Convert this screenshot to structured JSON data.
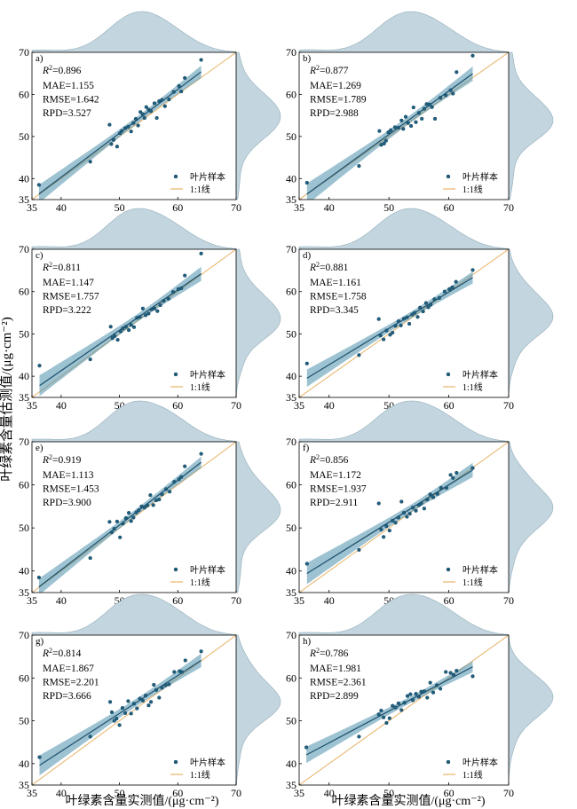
{
  "figure": {
    "ylabel": "叶绿素含量估测值/(μg·cm⁻²)",
    "xlabel": "叶绿素含量实测值/(μg·cm⁻²)",
    "legend_items": [
      "叶片样本",
      "1:1线"
    ],
    "colors": {
      "point": "#1f6080",
      "regression": "#1d4f6b",
      "band": "#4d8fab",
      "identity": "#e8b368",
      "density": "#c3d5de",
      "density_edge": "#92aebb"
    }
  },
  "chart_data": [
    {
      "panel": "a)",
      "type": "scatter",
      "xlim": [
        35,
        70
      ],
      "ylim": [
        35,
        70
      ],
      "xticks": [
        35,
        40,
        50,
        60,
        70
      ],
      "yticks": [
        35,
        40,
        50,
        60,
        70
      ],
      "legend_position": "bottom-right",
      "stats": {
        "r2": "0.896",
        "mae": "MAE=1.155",
        "rmse": "RMSE=1.642",
        "rpd": "RPD=3.527"
      },
      "x": [
        36.2,
        45.0,
        48.3,
        48.6,
        49.0,
        49.6,
        50.1,
        50.4,
        51.0,
        51.5,
        52.0,
        52.4,
        52.8,
        53.2,
        53.6,
        54.0,
        54.3,
        54.6,
        55.0,
        55.4,
        56.0,
        56.4,
        56.8,
        57.3,
        57.8,
        58.5,
        59.3,
        60.2,
        60.6,
        61.2,
        64.0
      ],
      "y": [
        38.5,
        44.0,
        52.8,
        48.2,
        49.2,
        47.6,
        50.8,
        51.3,
        52.0,
        52.3,
        51.2,
        53.2,
        54.2,
        52.6,
        55.8,
        55.3,
        54.4,
        57.0,
        56.4,
        56.0,
        57.9,
        54.4,
        58.4,
        58.7,
        57.2,
        58.8,
        60.6,
        62.0,
        60.7,
        63.9,
        68.2
      ]
    },
    {
      "panel": "b)",
      "type": "scatter",
      "xlim": [
        35,
        70
      ],
      "ylim": [
        35,
        70
      ],
      "xticks": [
        35,
        40,
        50,
        60,
        70
      ],
      "yticks": [
        35,
        40,
        50,
        60,
        70
      ],
      "legend_position": "bottom-right",
      "stats": {
        "r2": "0.877",
        "mae": "MAE=1.269",
        "rmse": "RMSE=1.789",
        "rpd": "RPD=2.988"
      },
      "x": [
        36.3,
        45.0,
        48.4,
        48.7,
        49.2,
        49.5,
        49.9,
        50.3,
        51.0,
        51.6,
        52.1,
        52.4,
        52.8,
        53.2,
        53.7,
        54.1,
        54.5,
        55.0,
        55.5,
        55.9,
        56.3,
        56.8,
        57.2,
        57.7,
        58.6,
        59.5,
        60.3,
        60.7,
        61.3,
        64.0
      ],
      "y": [
        39.0,
        43.0,
        51.3,
        48.0,
        48.3,
        49.0,
        51.0,
        51.5,
        52.2,
        52.1,
        53.8,
        51.8,
        54.7,
        53.2,
        52.5,
        56.9,
        53.4,
        55.6,
        54.2,
        56.6,
        57.7,
        57.6,
        57.0,
        54.2,
        59.2,
        59.8,
        61.0,
        60.2,
        65.3,
        69.2
      ]
    },
    {
      "panel": "c)",
      "type": "scatter",
      "xlim": [
        35,
        70
      ],
      "ylim": [
        35,
        70
      ],
      "xticks": [
        35,
        40,
        50,
        60,
        70
      ],
      "yticks": [
        35,
        40,
        50,
        60,
        70
      ],
      "legend_position": "bottom-right",
      "stats": {
        "r2": "0.811",
        "mae": "MAE=1.147",
        "rmse": "RMSE=1.757",
        "rpd": "RPD=3.222"
      },
      "x": [
        36.3,
        45.0,
        48.5,
        48.8,
        49.2,
        49.7,
        50.2,
        50.6,
        51.1,
        51.6,
        52.0,
        52.5,
        53.0,
        53.5,
        54.0,
        54.5,
        55.0,
        55.5,
        56.0,
        56.5,
        57.0,
        57.6,
        58.4,
        59.2,
        60.1,
        60.6,
        61.2,
        64.0
      ],
      "y": [
        42.5,
        44.0,
        51.7,
        49.0,
        49.5,
        48.6,
        50.6,
        51.3,
        51.7,
        50.9,
        52.1,
        51.6,
        53.8,
        54.0,
        56.0,
        54.4,
        54.8,
        55.8,
        56.0,
        55.4,
        56.8,
        57.8,
        58.3,
        59.9,
        60.6,
        60.8,
        63.8,
        69.0
      ]
    },
    {
      "panel": "d)",
      "type": "scatter",
      "xlim": [
        35,
        70
      ],
      "ylim": [
        35,
        70
      ],
      "xticks": [
        35,
        40,
        50,
        60,
        70
      ],
      "yticks": [
        35,
        40,
        50,
        60,
        70
      ],
      "legend_position": "bottom-right",
      "stats": {
        "r2": "0.881",
        "mae": "MAE=1.161",
        "rmse": "RMSE=1.758",
        "rpd": "RPD=3.345"
      },
      "x": [
        36.3,
        45.0,
        48.3,
        48.6,
        49.1,
        49.6,
        50.2,
        50.6,
        51.1,
        51.6,
        52.0,
        52.5,
        53.0,
        53.4,
        53.9,
        54.3,
        54.8,
        55.2,
        55.7,
        56.2,
        56.6,
        57.0,
        57.6,
        58.4,
        59.3,
        60.1,
        60.6,
        61.2,
        64.0
      ],
      "y": [
        43.0,
        45.0,
        53.5,
        49.6,
        48.7,
        50.8,
        49.8,
        50.3,
        51.9,
        53.0,
        52.0,
        53.6,
        53.9,
        52.4,
        54.6,
        55.0,
        54.0,
        56.2,
        55.3,
        57.3,
        56.3,
        56.9,
        58.2,
        58.5,
        60.0,
        60.6,
        61.0,
        62.3,
        65.1
      ]
    },
    {
      "panel": "e)",
      "type": "scatter",
      "xlim": [
        35,
        70
      ],
      "ylim": [
        35,
        70
      ],
      "xticks": [
        35,
        40,
        50,
        60,
        70
      ],
      "yticks": [
        35,
        40,
        50,
        60,
        70
      ],
      "legend_position": "bottom-right",
      "stats": {
        "r2": "0.919",
        "mae": "MAE=1.113",
        "rmse": "RMSE=1.453",
        "rpd": "RPD=3.900"
      },
      "x": [
        36.2,
        45.0,
        48.3,
        48.7,
        49.1,
        49.6,
        50.1,
        50.6,
        51.1,
        51.6,
        52.0,
        52.4,
        52.9,
        53.3,
        53.8,
        54.3,
        54.8,
        55.3,
        55.8,
        56.3,
        56.8,
        57.3,
        58.0,
        58.6,
        59.4,
        60.2,
        60.6,
        61.2,
        64.0
      ],
      "y": [
        38.5,
        43.0,
        51.4,
        49.0,
        49.8,
        51.5,
        47.8,
        51.0,
        52.3,
        53.5,
        51.6,
        52.4,
        53.6,
        54.1,
        55.0,
        54.7,
        55.2,
        57.6,
        55.3,
        56.4,
        56.6,
        57.8,
        59.0,
        58.4,
        60.7,
        61.3,
        61.8,
        64.3,
        67.2
      ]
    },
    {
      "panel": "f)",
      "type": "scatter",
      "xlim": [
        35,
        70
      ],
      "ylim": [
        35,
        70
      ],
      "xticks": [
        35,
        40,
        50,
        60,
        70
      ],
      "yticks": [
        35,
        40,
        50,
        60,
        70
      ],
      "legend_position": "bottom-right",
      "stats": {
        "r2": "0.856",
        "mae": "MAE=1.172",
        "rmse": "RMSE=1.937",
        "rpd": "RPD=2.911"
      },
      "x": [
        36.3,
        45.0,
        48.3,
        48.7,
        49.1,
        49.6,
        50.1,
        50.6,
        51.1,
        51.6,
        52.1,
        52.5,
        53.0,
        53.5,
        54.0,
        54.5,
        55.0,
        55.4,
        55.9,
        56.4,
        56.9,
        57.4,
        58.1,
        58.7,
        59.6,
        60.3,
        60.7,
        61.3,
        64.0
      ],
      "y": [
        41.7,
        44.9,
        55.7,
        49.6,
        47.9,
        50.4,
        49.4,
        51.7,
        51.2,
        52.4,
        56.1,
        53.5,
        52.6,
        53.3,
        54.7,
        54.0,
        55.3,
        55.7,
        54.5,
        56.6,
        57.8,
        57.1,
        57.9,
        59.3,
        59.3,
        62.3,
        61.6,
        62.8,
        63.9
      ]
    },
    {
      "panel": "g)",
      "type": "scatter",
      "xlim": [
        35,
        70
      ],
      "ylim": [
        35,
        70
      ],
      "xticks": [
        35,
        40,
        50,
        60,
        70
      ],
      "yticks": [
        35,
        40,
        50,
        60,
        70
      ],
      "legend_position": "bottom-right",
      "stats": {
        "r2": "0.814",
        "mae": "MAE=1.867",
        "rmse": "RMSE=2.201",
        "rpd": "RPD=3.666"
      },
      "x": [
        36.3,
        45.0,
        48.4,
        48.7,
        49.1,
        49.5,
        50.0,
        50.5,
        51.0,
        51.5,
        52.0,
        52.5,
        53.0,
        53.5,
        54.0,
        54.5,
        55.0,
        55.4,
        55.9,
        56.3,
        56.8,
        57.3,
        57.9,
        58.5,
        59.4,
        60.3,
        60.7,
        61.3,
        64.0
      ],
      "y": [
        41.5,
        46.3,
        54.4,
        52.0,
        50.0,
        50.5,
        49.0,
        53.0,
        51.8,
        54.6,
        51.7,
        54.0,
        52.9,
        55.2,
        54.7,
        55.9,
        53.6,
        54.4,
        58.4,
        57.2,
        55.4,
        57.7,
        58.3,
        58.5,
        61.4,
        61.6,
        61.4,
        64.1,
        66.2
      ]
    },
    {
      "panel": "h)",
      "type": "scatter",
      "xlim": [
        35,
        70
      ],
      "ylim": [
        35,
        70
      ],
      "xticks": [
        35,
        40,
        50,
        60,
        70
      ],
      "yticks": [
        35,
        40,
        50,
        60,
        70
      ],
      "legend_position": "bottom-right",
      "stats": {
        "r2": "0.786",
        "mae": "MAE=1.981",
        "rmse": "RMSE=2.361",
        "rpd": "RPD=2.899"
      },
      "x": [
        36.2,
        45.0,
        48.3,
        48.7,
        49.1,
        49.6,
        50.1,
        50.6,
        51.1,
        51.6,
        52.1,
        52.6,
        53.1,
        53.6,
        54.0,
        54.5,
        55.0,
        55.4,
        55.9,
        56.4,
        56.9,
        57.4,
        58.0,
        58.6,
        59.5,
        60.3,
        60.8,
        61.3,
        64.0
      ],
      "y": [
        43.8,
        46.3,
        51.5,
        52.4,
        50.8,
        49.5,
        50.6,
        53.5,
        53.1,
        54.1,
        52.5,
        54.2,
        55.8,
        56.2,
        54.8,
        56.3,
        55.6,
        56.8,
        56.9,
        55.4,
        58.9,
        56.6,
        58.3,
        57.5,
        61.4,
        61.2,
        60.7,
        61.7,
        60.4
      ]
    }
  ]
}
